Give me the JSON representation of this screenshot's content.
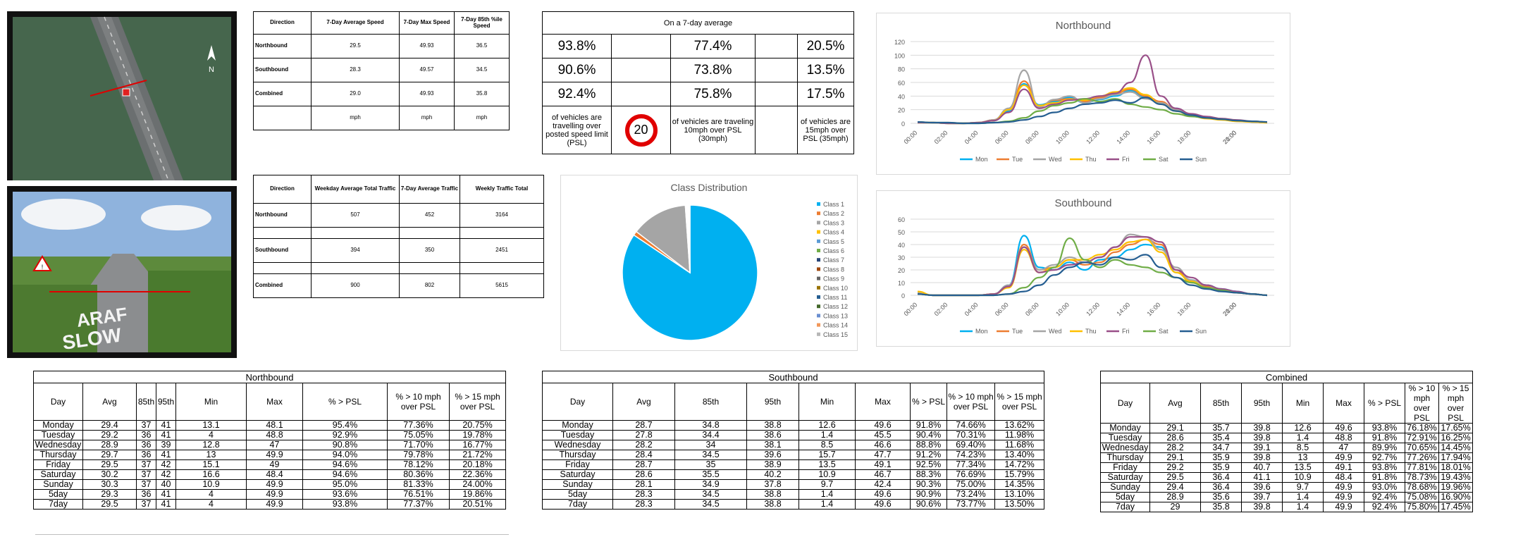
{
  "speed_table": {
    "headers": [
      "Direction",
      "7-Day Average Speed",
      "7-Day Max Speed",
      "7-Day 85th %ile Speed"
    ],
    "rows": [
      {
        "label": "Northbound",
        "avg": "29.5",
        "max": "49.93",
        "p85": "36.5"
      },
      {
        "label": "Southbound",
        "avg": "28.3",
        "max": "49.57",
        "p85": "34.5"
      },
      {
        "label": "Combined",
        "avg": "29.0",
        "max": "49.93",
        "p85": "35.8"
      }
    ],
    "units": [
      "mph",
      "mph",
      "mph"
    ]
  },
  "percent_table": {
    "title": "On a 7-day average",
    "rows": [
      [
        "93.8%",
        "77.4%",
        "20.5%"
      ],
      [
        "90.6%",
        "73.8%",
        "13.5%"
      ],
      [
        "92.4%",
        "75.8%",
        "17.5%"
      ]
    ],
    "notes": [
      "of vehicles are travelling over posted speed limit (PSL)",
      "of vehicles are traveling 10mph over PSL (30mph)",
      "of vehicles are 15mph over PSL (35mph)"
    ],
    "speed_limit_sign": "20"
  },
  "traffic_table": {
    "headers": [
      "Direction",
      "Weekday Average Total Traffic",
      "7-Day Average Traffic",
      "Weekly Traffic Total"
    ],
    "rows": [
      {
        "label": "Northbound",
        "weekday": "507",
        "avg7": "452",
        "weekly": "3164"
      },
      {
        "label": "Southbound",
        "weekday": "394",
        "avg7": "350",
        "weekly": "2451"
      },
      {
        "label": "Combined",
        "weekday": "900",
        "avg7": "802",
        "weekly": "5615"
      }
    ]
  },
  "map": {
    "north_label": "N"
  },
  "street_view": {
    "road_marking": "ARAF\nSLOW",
    "sign_text": "!"
  },
  "colors": {
    "Mon": "#00b0f0",
    "Tue": "#ed7d31",
    "Wed": "#a5a5a5",
    "Thu": "#ffc000",
    "Fri": "#994f88",
    "Sat": "#70ad47",
    "Sun": "#255e91",
    "pie_main": "#00b0f0",
    "pie_grey": "#a5a5a5",
    "pie_orange": "#ed7d31"
  },
  "chart_data": [
    {
      "type": "line",
      "title": "Northbound",
      "ylim": [
        0,
        120
      ],
      "yticks": [
        0,
        20,
        40,
        60,
        80,
        100,
        120
      ],
      "x": [
        "00:00",
        "01:00",
        "02:00",
        "03:00",
        "04:00",
        "05:00",
        "06:00",
        "07:00",
        "08:00",
        "09:00",
        "10:00",
        "11:00",
        "12:00",
        "13:00",
        "14:00",
        "15:00",
        "16:00",
        "17:00",
        "18:00",
        "19:00",
        "20:00",
        "21:00",
        "22:00",
        "23:00"
      ],
      "xtick_labels": [
        "00:00",
        "02:00",
        "04:00",
        "06:00",
        "08:00",
        "10:00",
        "12:00",
        "14:00",
        "16:00",
        "18:00",
        "20:00",
        "21:00"
      ],
      "legend": "bottom",
      "series": [
        {
          "name": "Mon",
          "values": [
            1,
            1,
            0,
            0,
            1,
            4,
            18,
            58,
            27,
            32,
            38,
            30,
            35,
            40,
            48,
            38,
            30,
            22,
            12,
            8,
            6,
            4,
            2,
            1
          ]
        },
        {
          "name": "Tue",
          "values": [
            1,
            1,
            0,
            0,
            1,
            5,
            20,
            62,
            25,
            34,
            36,
            32,
            38,
            44,
            50,
            40,
            32,
            20,
            13,
            9,
            6,
            4,
            2,
            1
          ]
        },
        {
          "name": "Wed",
          "values": [
            2,
            1,
            0,
            0,
            1,
            5,
            22,
            78,
            24,
            35,
            40,
            30,
            36,
            42,
            46,
            36,
            30,
            20,
            12,
            8,
            6,
            3,
            2,
            1
          ]
        },
        {
          "name": "Thu",
          "values": [
            1,
            1,
            0,
            0,
            1,
            4,
            20,
            56,
            26,
            30,
            35,
            34,
            40,
            46,
            52,
            42,
            28,
            18,
            11,
            7,
            5,
            3,
            2,
            1
          ]
        },
        {
          "name": "Fri",
          "values": [
            1,
            1,
            0,
            0,
            1,
            4,
            16,
            50,
            22,
            28,
            34,
            36,
            40,
            44,
            60,
            100,
            40,
            22,
            14,
            10,
            7,
            5,
            3,
            2
          ]
        },
        {
          "name": "Sat",
          "values": [
            2,
            1,
            1,
            0,
            0,
            1,
            3,
            8,
            18,
            26,
            30,
            36,
            32,
            36,
            28,
            24,
            20,
            14,
            10,
            8,
            6,
            4,
            3,
            2
          ]
        },
        {
          "name": "Sun",
          "values": [
            2,
            1,
            1,
            0,
            0,
            1,
            2,
            5,
            10,
            16,
            22,
            28,
            30,
            34,
            30,
            38,
            28,
            18,
            12,
            8,
            6,
            4,
            3,
            2
          ]
        }
      ]
    },
    {
      "type": "line",
      "title": "Southbound",
      "ylim": [
        0,
        60
      ],
      "yticks": [
        0,
        10,
        20,
        30,
        40,
        50,
        60
      ],
      "x": [
        "00:00",
        "01:00",
        "02:00",
        "03:00",
        "04:00",
        "05:00",
        "06:00",
        "07:00",
        "08:00",
        "09:00",
        "10:00",
        "11:00",
        "12:00",
        "13:00",
        "14:00",
        "15:00",
        "16:00",
        "17:00",
        "18:00",
        "19:00",
        "20:00",
        "21:00",
        "22:00",
        "23:00"
      ],
      "xtick_labels": [
        "00:00",
        "02:00",
        "04:00",
        "06:00",
        "08:00",
        "10:00",
        "12:00",
        "14:00",
        "16:00",
        "18:00",
        "20:00",
        "21:00"
      ],
      "legend": "bottom",
      "series": [
        {
          "name": "Mon",
          "values": [
            1,
            0,
            0,
            0,
            0,
            1,
            8,
            47,
            22,
            20,
            26,
            20,
            28,
            30,
            36,
            40,
            38,
            18,
            12,
            8,
            5,
            3,
            1,
            0
          ]
        },
        {
          "name": "Tue",
          "values": [
            1,
            0,
            0,
            0,
            0,
            1,
            7,
            40,
            20,
            22,
            28,
            24,
            26,
            34,
            40,
            44,
            40,
            20,
            10,
            7,
            4,
            2,
            1,
            0
          ]
        },
        {
          "name": "Wed",
          "values": [
            2,
            0,
            0,
            0,
            0,
            1,
            8,
            38,
            20,
            24,
            30,
            26,
            30,
            38,
            48,
            46,
            36,
            22,
            12,
            8,
            4,
            2,
            1,
            0
          ]
        },
        {
          "name": "Thu",
          "values": [
            3,
            0,
            0,
            0,
            0,
            1,
            6,
            36,
            18,
            22,
            28,
            28,
            32,
            36,
            42,
            44,
            34,
            18,
            11,
            6,
            4,
            2,
            1,
            0
          ]
        },
        {
          "name": "Fri",
          "values": [
            1,
            0,
            0,
            0,
            0,
            1,
            7,
            38,
            18,
            20,
            24,
            26,
            30,
            38,
            46,
            46,
            42,
            20,
            14,
            8,
            5,
            3,
            1,
            0
          ]
        },
        {
          "name": "Sat",
          "values": [
            1,
            0,
            0,
            0,
            0,
            0,
            1,
            6,
            14,
            22,
            45,
            28,
            22,
            28,
            24,
            22,
            18,
            14,
            10,
            6,
            4,
            2,
            1,
            0
          ]
        },
        {
          "name": "Sun",
          "values": [
            1,
            0,
            0,
            0,
            0,
            0,
            1,
            3,
            8,
            16,
            22,
            26,
            24,
            30,
            28,
            32,
            22,
            14,
            8,
            5,
            3,
            2,
            1,
            0
          ]
        }
      ]
    },
    {
      "type": "pie",
      "title": "Class Distribution",
      "legend": "right",
      "categories": [
        "Class 1",
        "Class 2",
        "Class 3",
        "Class 4",
        "Class 5",
        "Class 6",
        "Class 7",
        "Class 8",
        "Class 9",
        "Class 10",
        "Class 11",
        "Class 12",
        "Class 13",
        "Class 14",
        "Class 15"
      ],
      "values": [
        84.5,
        1.0,
        13.5,
        0.2,
        0.1,
        0.1,
        0.1,
        0.1,
        0.1,
        0.1,
        0.05,
        0.05,
        0.05,
        0.05,
        0.1
      ],
      "colors": [
        "#00b0f0",
        "#ed7d31",
        "#a5a5a5",
        "#ffc000",
        "#5b9bd5",
        "#70ad47",
        "#264478",
        "#9e480e",
        "#636363",
        "#997300",
        "#255e91",
        "#43682b",
        "#698ed0",
        "#f1975a",
        "#b7b7b7"
      ]
    }
  ],
  "day_tables": [
    {
      "caption": "Northbound",
      "headers": [
        "Day",
        "Avg",
        "85th",
        "95th",
        "Min",
        "Max",
        "% > PSL",
        "% > 10 mph over PSL",
        "% > 15 mph over PSL"
      ],
      "rows": [
        [
          "Monday",
          "29.4",
          "37",
          "41",
          "13.1",
          "48.1",
          "95.4%",
          "77.36%",
          "20.75%"
        ],
        [
          "Tuesday",
          "29.2",
          "36",
          "41",
          "4",
          "48.8",
          "92.9%",
          "75.05%",
          "19.78%"
        ],
        [
          "Wednesday",
          "28.9",
          "36",
          "39",
          "12.8",
          "47",
          "90.8%",
          "71.70%",
          "16.77%"
        ],
        [
          "Thursday",
          "29.7",
          "36",
          "41",
          "13",
          "49.9",
          "94.0%",
          "79.78%",
          "21.72%"
        ],
        [
          "Friday",
          "29.5",
          "37",
          "42",
          "15.1",
          "49",
          "94.6%",
          "78.12%",
          "20.18%"
        ],
        [
          "Saturday",
          "30.2",
          "37",
          "42",
          "16.6",
          "48.4",
          "94.6%",
          "80.36%",
          "22.36%"
        ],
        [
          "Sunday",
          "30.3",
          "37",
          "40",
          "10.9",
          "49.9",
          "95.0%",
          "81.33%",
          "24.00%"
        ],
        [
          "5day",
          "29.3",
          "36",
          "41",
          "4",
          "49.9",
          "93.6%",
          "76.51%",
          "19.86%"
        ],
        [
          "7day",
          "29.5",
          "37",
          "41",
          "4",
          "49.9",
          "93.8%",
          "77.37%",
          "20.51%"
        ]
      ]
    },
    {
      "caption": "Southbound",
      "headers": [
        "Day",
        "Avg",
        "85th",
        "95th",
        "Min",
        "Max",
        "% > PSL",
        "% > 10 mph over PSL",
        "% > 15 mph over PSL"
      ],
      "rows": [
        [
          "Monday",
          "28.7",
          "34.8",
          "38.8",
          "12.6",
          "49.6",
          "91.8%",
          "74.66%",
          "13.62%"
        ],
        [
          "Tuesday",
          "27.8",
          "34.4",
          "38.6",
          "1.4",
          "45.5",
          "90.4%",
          "70.31%",
          "11.98%"
        ],
        [
          "Wednesday",
          "28.2",
          "34",
          "38.1",
          "8.5",
          "46.6",
          "88.8%",
          "69.40%",
          "11.68%"
        ],
        [
          "Thursday",
          "28.4",
          "34.5",
          "39.6",
          "15.7",
          "47.7",
          "91.2%",
          "74.23%",
          "13.40%"
        ],
        [
          "Friday",
          "28.7",
          "35",
          "38.9",
          "13.5",
          "49.1",
          "92.5%",
          "77.34%",
          "14.72%"
        ],
        [
          "Saturday",
          "28.6",
          "35.5",
          "40.2",
          "10.9",
          "46.7",
          "88.3%",
          "76.69%",
          "15.79%"
        ],
        [
          "Sunday",
          "28.1",
          "34.9",
          "37.8",
          "9.7",
          "42.4",
          "90.3%",
          "75.00%",
          "14.35%"
        ],
        [
          "5day",
          "28.3",
          "34.5",
          "38.8",
          "1.4",
          "49.6",
          "90.9%",
          "73.24%",
          "13.10%"
        ],
        [
          "7day",
          "28.3",
          "34.5",
          "38.8",
          "1.4",
          "49.6",
          "90.6%",
          "73.77%",
          "13.50%"
        ]
      ]
    },
    {
      "caption": "Combined",
      "headers": [
        "Day",
        "Avg",
        "85th",
        "95th",
        "Min",
        "Max",
        "% > PSL",
        "% > 10 mph over PSL",
        "% > 15 mph over PSL"
      ],
      "rows": [
        [
          "Monday",
          "29.1",
          "35.7",
          "39.8",
          "12.6",
          "49.6",
          "93.8%",
          "76.18%",
          "17.65%"
        ],
        [
          "Tuesday",
          "28.6",
          "35.4",
          "39.8",
          "1.4",
          "48.8",
          "91.8%",
          "72.91%",
          "16.25%"
        ],
        [
          "Wednesday",
          "28.2",
          "34.7",
          "39.1",
          "8.5",
          "47",
          "89.9%",
          "70.65%",
          "14.45%"
        ],
        [
          "Thursday",
          "29.1",
          "35.9",
          "39.8",
          "13",
          "49.9",
          "92.7%",
          "77.26%",
          "17.94%"
        ],
        [
          "Friday",
          "29.2",
          "35.9",
          "40.7",
          "13.5",
          "49.1",
          "93.8%",
          "77.81%",
          "18.01%"
        ],
        [
          "Saturday",
          "29.5",
          "36.4",
          "41.1",
          "10.9",
          "48.4",
          "91.8%",
          "78.73%",
          "19.43%"
        ],
        [
          "Sunday",
          "29.4",
          "36.4",
          "39.6",
          "9.7",
          "49.9",
          "93.0%",
          "78.68%",
          "19.96%"
        ],
        [
          "5day",
          "28.9",
          "35.6",
          "39.7",
          "1.4",
          "49.9",
          "92.4%",
          "75.08%",
          "16.90%"
        ],
        [
          "7day",
          "29",
          "35.8",
          "39.8",
          "1.4",
          "49.9",
          "92.4%",
          "75.80%",
          "17.45%"
        ]
      ]
    }
  ]
}
